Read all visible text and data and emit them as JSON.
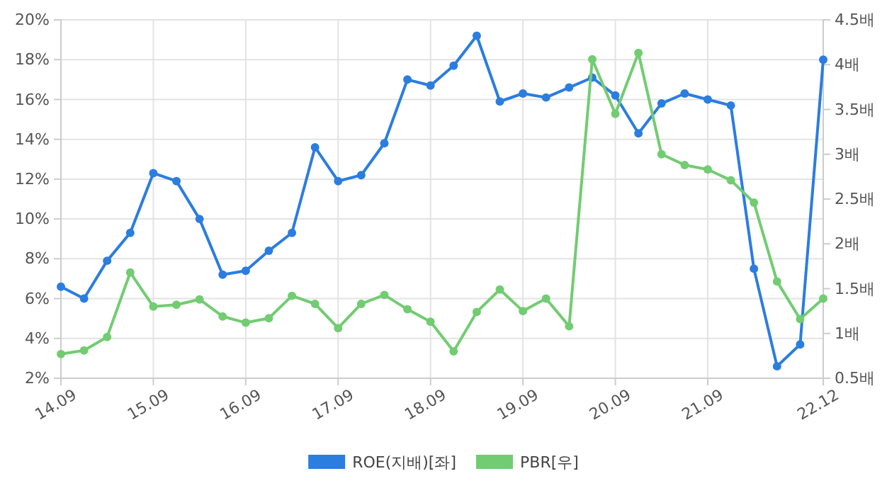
{
  "chart_data": {
    "type": "line",
    "categories": [
      "14.09",
      null,
      null,
      null,
      "15.09",
      null,
      null,
      null,
      "16.09",
      null,
      null,
      null,
      "17.09",
      null,
      null,
      null,
      "18.09",
      null,
      null,
      null,
      "19.09",
      null,
      null,
      null,
      "20.09",
      null,
      null,
      null,
      "21.09",
      null,
      null,
      null,
      null,
      "22.12"
    ],
    "series": [
      {
        "name": "ROE(지배)[좌]",
        "color": "#2b7de0",
        "values": [
          6.6,
          6.0,
          7.9,
          9.3,
          12.3,
          11.9,
          10.0,
          7.2,
          7.4,
          8.4,
          9.3,
          13.6,
          11.9,
          12.2,
          13.8,
          17.0,
          16.7,
          17.7,
          19.2,
          15.9,
          16.3,
          16.1,
          16.6,
          17.1,
          16.2,
          14.3,
          15.8,
          16.3,
          16.0,
          15.7,
          7.5,
          2.6,
          3.7,
          18.0
        ]
      },
      {
        "name": "PBR[우]",
        "color": "#72cc72",
        "axis": "y2",
        "values": [
          0.77,
          0.81,
          0.96,
          1.68,
          1.3,
          1.32,
          1.38,
          1.19,
          1.12,
          1.17,
          1.42,
          1.33,
          1.06,
          1.33,
          1.43,
          1.27,
          1.13,
          0.8,
          1.24,
          1.49,
          1.25,
          1.39,
          1.08,
          4.06,
          3.45,
          4.13,
          3.0,
          2.88,
          2.83,
          2.71,
          2.46,
          1.58,
          1.16,
          1.39
        ]
      }
    ],
    "ylim": [
      2,
      20
    ],
    "yticks": [
      {
        "value": 2,
        "label": "2%"
      },
      {
        "value": 4,
        "label": "4%"
      },
      {
        "value": 6,
        "label": "6%"
      },
      {
        "value": 8,
        "label": "8%"
      },
      {
        "value": 10,
        "label": "10%"
      },
      {
        "value": 12,
        "label": "12%"
      },
      {
        "value": 14,
        "label": "14%"
      },
      {
        "value": 16,
        "label": "16%"
      },
      {
        "value": 18,
        "label": "18%"
      },
      {
        "value": 20,
        "label": "20%"
      }
    ],
    "y2lim": [
      0.5,
      4.5
    ],
    "y2ticks": [
      {
        "value": 0.5,
        "label": "0.5배"
      },
      {
        "value": 1,
        "label": "1배"
      },
      {
        "value": 1.5,
        "label": "1.5배"
      },
      {
        "value": 2,
        "label": "2배"
      },
      {
        "value": 2.5,
        "label": "2.5배"
      },
      {
        "value": 3,
        "label": "3배"
      },
      {
        "value": 3.5,
        "label": "3.5배"
      },
      {
        "value": 4,
        "label": "4배"
      },
      {
        "value": 4.5,
        "label": "4.5배"
      }
    ],
    "grid": true,
    "legend": "bottom",
    "marker": "circle",
    "line_style": "solid"
  }
}
